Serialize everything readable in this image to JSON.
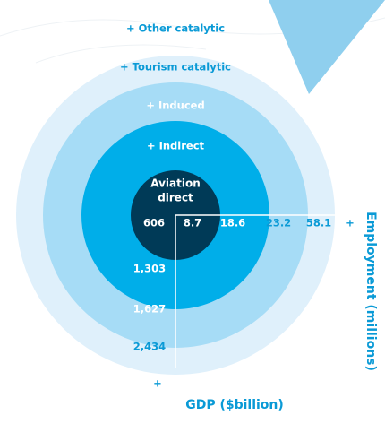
{
  "diagram": {
    "ring_labels": [
      "+ Other catalytic",
      "+ Tourism catalytic",
      "+ Induced",
      "+ Indirect"
    ],
    "center": {
      "line1": "Aviation",
      "line2": "direct"
    },
    "employment": [
      "8.7",
      "18.6",
      "23.2",
      "58.1",
      "+"
    ],
    "gdp": [
      "606",
      "1,303",
      "1,627",
      "2,434",
      "+"
    ],
    "employment_axis": "Employment (millions)",
    "gdp_axis": "GDP ($billion)"
  }
}
